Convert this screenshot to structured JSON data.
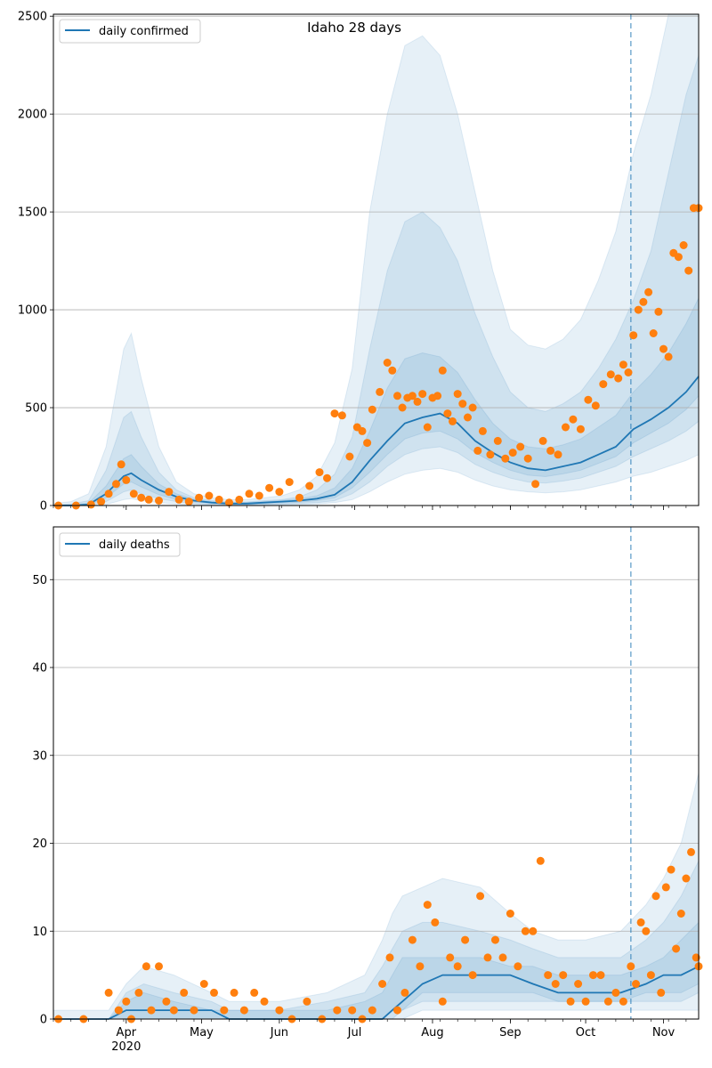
{
  "colors": {
    "line": "#1f77b4",
    "band": "#1f77b4",
    "points": "#ff7f0e",
    "grid": "#b0b0b0"
  },
  "chart_data": [
    {
      "type": "line",
      "title": "Idaho 28 days",
      "legend": {
        "label": "daily confirmed",
        "placement": "top-left"
      },
      "grid": "y",
      "ylim": [
        0,
        2510
      ],
      "yticks": [
        0,
        500,
        1000,
        1500,
        2000,
        2500
      ],
      "forecast_start": "2020-10-19",
      "median": {
        "x": [
          "2020-03-03",
          "2020-03-10",
          "2020-03-17",
          "2020-03-24",
          "2020-03-31",
          "2020-04-03",
          "2020-04-07",
          "2020-04-14",
          "2020-04-21",
          "2020-04-28",
          "2020-05-05",
          "2020-05-12",
          "2020-05-19",
          "2020-05-26",
          "2020-06-02",
          "2020-06-09",
          "2020-06-16",
          "2020-06-23",
          "2020-06-30",
          "2020-07-07",
          "2020-07-14",
          "2020-07-21",
          "2020-07-28",
          "2020-08-04",
          "2020-08-11",
          "2020-08-18",
          "2020-08-25",
          "2020-09-01",
          "2020-09-08",
          "2020-09-15",
          "2020-09-22",
          "2020-09-29",
          "2020-10-06",
          "2020-10-13",
          "2020-10-20",
          "2020-10-27",
          "2020-11-03",
          "2020-11-10",
          "2020-11-15"
        ],
        "y": [
          0,
          0,
          5,
          60,
          150,
          165,
          130,
          80,
          45,
          25,
          15,
          10,
          10,
          15,
          20,
          25,
          35,
          55,
          120,
          230,
          330,
          420,
          450,
          470,
          420,
          330,
          270,
          220,
          190,
          180,
          200,
          220,
          260,
          300,
          390,
          440,
          500,
          580,
          660
        ]
      },
      "bands": [
        {
          "lower": [
            0,
            0,
            0,
            5,
            30,
            35,
            25,
            15,
            8,
            4,
            2,
            2,
            2,
            3,
            4,
            5,
            8,
            15,
            30,
            70,
            120,
            160,
            180,
            190,
            170,
            130,
            100,
            80,
            70,
            65,
            70,
            80,
            100,
            120,
            150,
            170,
            200,
            230,
            260
          ],
          "upper": [
            10,
            20,
            60,
            300,
            800,
            880,
            650,
            300,
            120,
            60,
            40,
            30,
            30,
            40,
            50,
            80,
            150,
            320,
            700,
            1500,
            2000,
            2350,
            2400,
            2300,
            2000,
            1600,
            1200,
            900,
            820,
            800,
            850,
            950,
            1150,
            1400,
            1800,
            2100,
            2510,
            2510,
            2510
          ]
        },
        {
          "lower": [
            0,
            0,
            1,
            20,
            70,
            80,
            60,
            35,
            20,
            10,
            6,
            4,
            4,
            6,
            8,
            10,
            15,
            25,
            60,
            120,
            200,
            260,
            290,
            300,
            270,
            210,
            170,
            140,
            120,
            115,
            125,
            140,
            170,
            200,
            250,
            290,
            330,
            380,
            430
          ],
          "upper": [
            3,
            8,
            25,
            180,
            450,
            480,
            350,
            170,
            80,
            40,
            25,
            18,
            18,
            25,
            30,
            45,
            80,
            160,
            350,
            800,
            1200,
            1450,
            1500,
            1420,
            1250,
            980,
            760,
            580,
            500,
            480,
            520,
            580,
            700,
            850,
            1050,
            1300,
            1700,
            2100,
            2300
          ]
        },
        {
          "lower": [
            0,
            0,
            3,
            40,
            110,
            120,
            95,
            55,
            32,
            18,
            10,
            7,
            7,
            10,
            13,
            17,
            25,
            40,
            90,
            170,
            260,
            340,
            370,
            380,
            340,
            270,
            220,
            180,
            155,
            148,
            162,
            180,
            215,
            250,
            320,
            370,
            420,
            490,
            560
          ],
          "upper": [
            1,
            4,
            12,
            100,
            240,
            260,
            200,
            110,
            60,
            32,
            20,
            14,
            14,
            20,
            26,
            34,
            50,
            90,
            190,
            380,
            600,
            750,
            780,
            760,
            680,
            540,
            420,
            340,
            300,
            290,
            310,
            340,
            400,
            460,
            580,
            670,
            780,
            930,
            1060
          ]
        }
      ],
      "observed": {
        "x": [
          "2020-03-05",
          "2020-03-12",
          "2020-03-18",
          "2020-03-22",
          "2020-03-25",
          "2020-03-28",
          "2020-03-30",
          "2020-04-01",
          "2020-04-04",
          "2020-04-07",
          "2020-04-10",
          "2020-04-14",
          "2020-04-18",
          "2020-04-22",
          "2020-04-26",
          "2020-04-30",
          "2020-05-04",
          "2020-05-08",
          "2020-05-12",
          "2020-05-16",
          "2020-05-20",
          "2020-05-24",
          "2020-05-28",
          "2020-06-01",
          "2020-06-05",
          "2020-06-09",
          "2020-06-13",
          "2020-06-17",
          "2020-06-20",
          "2020-06-23",
          "2020-06-26",
          "2020-06-29",
          "2020-07-02",
          "2020-07-04",
          "2020-07-06",
          "2020-07-08",
          "2020-07-11",
          "2020-07-14",
          "2020-07-16",
          "2020-07-18",
          "2020-07-20",
          "2020-07-22",
          "2020-07-24",
          "2020-07-26",
          "2020-07-28",
          "2020-07-30",
          "2020-08-01",
          "2020-08-03",
          "2020-08-05",
          "2020-08-07",
          "2020-08-09",
          "2020-08-11",
          "2020-08-13",
          "2020-08-15",
          "2020-08-17",
          "2020-08-19",
          "2020-08-21",
          "2020-08-24",
          "2020-08-27",
          "2020-08-30",
          "2020-09-02",
          "2020-09-05",
          "2020-09-08",
          "2020-09-11",
          "2020-09-14",
          "2020-09-17",
          "2020-09-20",
          "2020-09-23",
          "2020-09-26",
          "2020-09-29",
          "2020-10-02",
          "2020-10-05",
          "2020-10-08",
          "2020-10-11",
          "2020-10-14",
          "2020-10-16",
          "2020-10-18",
          "2020-10-20",
          "2020-10-22",
          "2020-10-24",
          "2020-10-26",
          "2020-10-28",
          "2020-10-30",
          "2020-11-01",
          "2020-11-03",
          "2020-11-05",
          "2020-11-07",
          "2020-11-09",
          "2020-11-11",
          "2020-11-13",
          "2020-11-15"
        ],
        "y": [
          0,
          0,
          5,
          20,
          60,
          110,
          210,
          130,
          60,
          40,
          30,
          25,
          70,
          30,
          20,
          40,
          50,
          30,
          15,
          30,
          60,
          50,
          90,
          70,
          120,
          40,
          100,
          170,
          140,
          470,
          460,
          250,
          400,
          380,
          320,
          490,
          580,
          730,
          690,
          560,
          500,
          550,
          560,
          530,
          570,
          400,
          550,
          560,
          690,
          470,
          430,
          570,
          520,
          450,
          500,
          280,
          380,
          260,
          330,
          240,
          270,
          300,
          240,
          110,
          330,
          280,
          260,
          400,
          440,
          390,
          540,
          510,
          620,
          670,
          650,
          720,
          680,
          870,
          1000,
          1040,
          1090,
          880,
          990,
          800,
          760,
          1290,
          1270,
          1330,
          1200,
          1520,
          1520
        ]
      }
    },
    {
      "type": "line",
      "title": "",
      "legend": {
        "label": "daily deaths",
        "placement": "top-left"
      },
      "grid": "y",
      "ylim": [
        0,
        56
      ],
      "yticks": [
        0,
        10,
        20,
        30,
        40,
        50
      ],
      "forecast_start": "2020-10-19",
      "xticks": [
        {
          "date": "2020-04-01",
          "label": "Apr",
          "sub": "2020"
        },
        {
          "date": "2020-05-01",
          "label": "May",
          "sub": ""
        },
        {
          "date": "2020-06-01",
          "label": "Jun",
          "sub": ""
        },
        {
          "date": "2020-07-01",
          "label": "Jul",
          "sub": ""
        },
        {
          "date": "2020-08-01",
          "label": "Aug",
          "sub": ""
        },
        {
          "date": "2020-09-01",
          "label": "Sep",
          "sub": ""
        },
        {
          "date": "2020-10-01",
          "label": "Oct",
          "sub": ""
        },
        {
          "date": "2020-11-01",
          "label": "Nov",
          "sub": ""
        }
      ],
      "median": {
        "x": [
          "2020-03-03",
          "2020-03-25",
          "2020-04-01",
          "2020-04-08",
          "2020-04-20",
          "2020-05-05",
          "2020-05-12",
          "2020-05-20",
          "2020-06-01",
          "2020-06-20",
          "2020-07-05",
          "2020-07-12",
          "2020-07-16",
          "2020-07-20",
          "2020-07-28",
          "2020-08-05",
          "2020-08-20",
          "2020-09-01",
          "2020-09-10",
          "2020-09-20",
          "2020-10-01",
          "2020-10-15",
          "2020-10-25",
          "2020-11-01",
          "2020-11-08",
          "2020-11-15"
        ],
        "y": [
          0,
          0,
          1,
          1,
          1,
          1,
          0,
          0,
          0,
          0,
          0,
          0,
          1,
          2,
          4,
          5,
          5,
          5,
          4,
          3,
          3,
          3,
          4,
          5,
          5,
          6
        ]
      },
      "bands": [
        {
          "lower": [
            0,
            0,
            0,
            0,
            0,
            0,
            0,
            0,
            0,
            0,
            0,
            0,
            0,
            0,
            1,
            1,
            1,
            1,
            1,
            1,
            1,
            1,
            1,
            1,
            1,
            1
          ],
          "upper": [
            1,
            1,
            4,
            6,
            5,
            3,
            2,
            2,
            2,
            3,
            5,
            9,
            12,
            14,
            15,
            16,
            15,
            12,
            10,
            9,
            9,
            10,
            13,
            16,
            20,
            28
          ]
        },
        {
          "lower": [
            0,
            0,
            0,
            0,
            0,
            0,
            0,
            0,
            0,
            0,
            0,
            0,
            0,
            1,
            2,
            2,
            2,
            2,
            2,
            2,
            2,
            2,
            2,
            2,
            2,
            3
          ],
          "upper": [
            0,
            0,
            3,
            4,
            3,
            2,
            1,
            1,
            1,
            2,
            3,
            6,
            8,
            10,
            11,
            11,
            10,
            9,
            8,
            7,
            7,
            7,
            9,
            11,
            14,
            18
          ]
        },
        {
          "lower": [
            0,
            0,
            0,
            0,
            0,
            0,
            0,
            0,
            0,
            0,
            0,
            0,
            1,
            1,
            3,
            3,
            3,
            3,
            3,
            2,
            2,
            2,
            3,
            3,
            3,
            4
          ],
          "upper": [
            0,
            0,
            2,
            3,
            2,
            1,
            1,
            1,
            1,
            1,
            2,
            3,
            5,
            7,
            7,
            7,
            7,
            6,
            6,
            5,
            5,
            5,
            6,
            7,
            9,
            11
          ]
        }
      ],
      "observed": {
        "x": [
          "2020-03-05",
          "2020-03-15",
          "2020-03-25",
          "2020-03-29",
          "2020-04-01",
          "2020-04-03",
          "2020-04-06",
          "2020-04-09",
          "2020-04-11",
          "2020-04-14",
          "2020-04-17",
          "2020-04-20",
          "2020-04-24",
          "2020-04-28",
          "2020-05-02",
          "2020-05-06",
          "2020-05-10",
          "2020-05-14",
          "2020-05-18",
          "2020-05-22",
          "2020-05-26",
          "2020-06-01",
          "2020-06-06",
          "2020-06-12",
          "2020-06-18",
          "2020-06-24",
          "2020-06-30",
          "2020-07-04",
          "2020-07-08",
          "2020-07-12",
          "2020-07-15",
          "2020-07-18",
          "2020-07-21",
          "2020-07-24",
          "2020-07-27",
          "2020-07-30",
          "2020-08-02",
          "2020-08-05",
          "2020-08-08",
          "2020-08-11",
          "2020-08-14",
          "2020-08-17",
          "2020-08-20",
          "2020-08-23",
          "2020-08-26",
          "2020-08-29",
          "2020-09-01",
          "2020-09-04",
          "2020-09-07",
          "2020-09-10",
          "2020-09-13",
          "2020-09-16",
          "2020-09-19",
          "2020-09-22",
          "2020-09-25",
          "2020-09-28",
          "2020-10-01",
          "2020-10-04",
          "2020-10-07",
          "2020-10-10",
          "2020-10-13",
          "2020-10-16",
          "2020-10-19",
          "2020-10-21",
          "2020-10-23",
          "2020-10-25",
          "2020-10-27",
          "2020-10-29",
          "2020-10-31",
          "2020-11-02",
          "2020-11-04",
          "2020-11-06",
          "2020-11-08",
          "2020-11-10",
          "2020-11-12",
          "2020-11-14",
          "2020-11-15"
        ],
        "y": [
          0,
          0,
          3,
          1,
          2,
          0,
          3,
          6,
          1,
          6,
          2,
          1,
          3,
          1,
          4,
          3,
          1,
          3,
          1,
          3,
          2,
          1,
          0,
          2,
          0,
          1,
          1,
          0,
          1,
          4,
          7,
          1,
          3,
          9,
          6,
          13,
          11,
          2,
          7,
          6,
          9,
          5,
          14,
          7,
          9,
          7,
          12,
          6,
          10,
          10,
          18,
          5,
          4,
          5,
          2,
          4,
          2,
          5,
          5,
          2,
          3,
          2,
          6,
          4,
          11,
          10,
          5,
          14,
          3,
          15,
          17,
          8,
          12,
          16,
          19,
          7,
          6
        ]
      }
    }
  ]
}
